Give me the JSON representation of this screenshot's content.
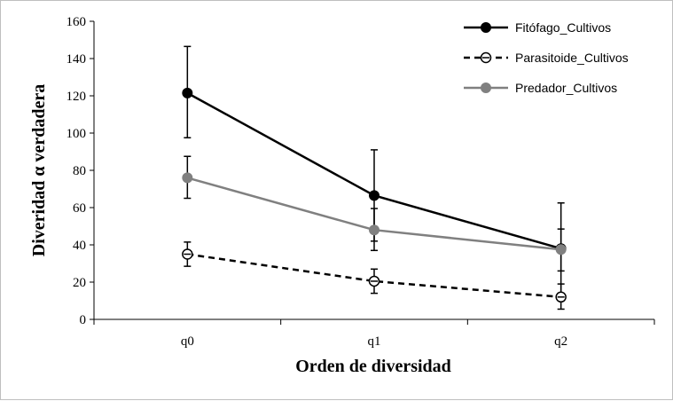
{
  "chart_data": {
    "type": "line",
    "categories": [
      "q0",
      "q1",
      "q2"
    ],
    "xlabel": "Orden de diversidad",
    "ylabel": "Diveridad α verdadera",
    "ylim": [
      0,
      160
    ],
    "yticks": [
      0,
      20,
      40,
      60,
      80,
      100,
      120,
      140,
      160
    ],
    "grid": false,
    "legend_position": "top-right",
    "series": [
      {
        "name": "Fitófago_Cultivos",
        "values": [
          121.5,
          66.5,
          38
        ],
        "err_low": [
          97.5,
          42,
          14
        ],
        "err_high": [
          146.5,
          91,
          62.5
        ],
        "color": "#000000",
        "line_style": "solid",
        "marker": "filled-circle"
      },
      {
        "name": "Parasitoide_Cultivos",
        "values": [
          35,
          20.5,
          12
        ],
        "err_low": [
          28.5,
          14,
          5.5
        ],
        "err_high": [
          41.5,
          27,
          19
        ],
        "color": "#000000",
        "line_style": "dashed",
        "marker": "open-circle-dash"
      },
      {
        "name": "Predador_Cultivos",
        "values": [
          76,
          48,
          37.5
        ],
        "err_low": [
          65,
          37,
          26
        ],
        "err_high": [
          87.5,
          59.5,
          48.5
        ],
        "color": "#808080",
        "line_style": "solid",
        "marker": "filled-circle"
      }
    ]
  }
}
